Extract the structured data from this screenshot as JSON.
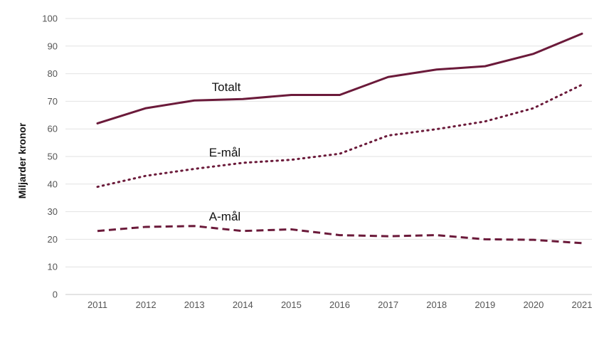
{
  "chart_data": {
    "type": "line",
    "title": "",
    "xlabel": "",
    "ylabel": "Miljarder kronor",
    "ylim": [
      0,
      100
    ],
    "yticks": [
      0,
      10,
      20,
      30,
      40,
      50,
      60,
      70,
      80,
      90,
      100
    ],
    "grid": "horizontal",
    "legend": "none (direct labels on lines)",
    "x": [
      "2011",
      "2012",
      "2013",
      "2014",
      "2015",
      "2016",
      "2017",
      "2018",
      "2019",
      "2020",
      "2021"
    ],
    "series": [
      {
        "name": "Totalt",
        "style": "solid",
        "color": "#6b1a3a",
        "values": [
          62.0,
          67.5,
          70.3,
          70.8,
          72.3,
          72.3,
          78.8,
          81.5,
          82.7,
          87.2,
          94.5
        ]
      },
      {
        "name": "E-mål",
        "style": "dotted",
        "color": "#6b1a3a",
        "values": [
          39.0,
          43.0,
          45.5,
          47.7,
          48.8,
          51.0,
          57.6,
          59.9,
          62.7,
          67.5,
          76.0
        ]
      },
      {
        "name": "A-mål",
        "style": "dashed",
        "color": "#6b1a3a",
        "values": [
          23.0,
          24.5,
          24.8,
          23.0,
          23.6,
          21.5,
          21.1,
          21.5,
          20.0,
          19.8,
          18.6
        ]
      }
    ]
  }
}
